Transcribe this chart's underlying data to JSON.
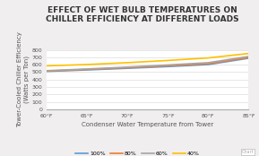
{
  "title": "EFFECT OF WET BULB TEMPERATURES ON\nCHILLER EFFICIENCY AT DIFFERENT LOADS",
  "xlabel": "Condenser Water Temperature from Tower",
  "ylabel": "Tower-Cooled Chiller Efficiency\n(Watts per Ton)",
  "x_ticks": [
    "60°F",
    "65°F",
    "70°F",
    "75°F",
    "80°F",
    "85°F"
  ],
  "x_values": [
    60,
    65,
    70,
    75,
    80,
    85
  ],
  "series": [
    {
      "label": "100%",
      "color": "#5b9bd5",
      "y_values": [
        510,
        530,
        552,
        575,
        602,
        688
      ]
    },
    {
      "label": "80%",
      "color": "#ed7d31",
      "y_values": [
        515,
        537,
        560,
        586,
        614,
        697
      ]
    },
    {
      "label": "60%",
      "color": "#a5a5a5",
      "y_values": [
        520,
        543,
        568,
        597,
        628,
        712
      ]
    },
    {
      "label": "40%",
      "color": "#ffc000",
      "y_values": [
        585,
        603,
        628,
        658,
        692,
        752
      ]
    }
  ],
  "ylim": [
    0,
    800
  ],
  "yticks": [
    0,
    100,
    200,
    300,
    400,
    500,
    600,
    700,
    800
  ],
  "fig_bg_color": "#f0eeee",
  "plot_bg_color": "#ffffff",
  "title_fontsize": 6.5,
  "label_fontsize": 5.0,
  "tick_fontsize": 4.5,
  "legend_fontsize": 4.5
}
